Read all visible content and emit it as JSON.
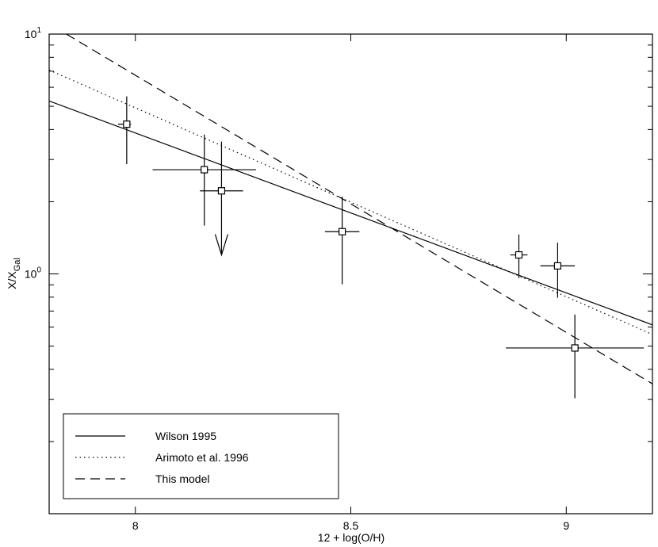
{
  "chart_data": {
    "type": "line",
    "xlabel": "12 + log(O/H)",
    "ylabel": "X/X",
    "ylabel_sub": "Gal",
    "xlim": [
      7.8,
      9.2
    ],
    "xticks": [
      8,
      8.5,
      9
    ],
    "ylim": [
      0.1,
      10
    ],
    "log_y": true,
    "yticks": [
      {
        "value": 1,
        "label": "10",
        "exponent": "0"
      },
      {
        "value": 10,
        "label": "10",
        "exponent": "1"
      }
    ],
    "yminorticks": [
      0.2,
      0.3,
      0.4,
      0.5,
      0.6,
      0.7,
      0.8,
      0.9,
      2,
      3,
      4,
      5,
      6,
      7,
      8,
      9
    ],
    "legend": "lower left",
    "series": [
      {
        "name": "Wilson 1995",
        "color": "#000000",
        "dash": "solid",
        "x": [
          7.8,
          9.2
        ],
        "values": [
          5.26,
          0.613
        ]
      },
      {
        "name": "Arimoto et al. 1996",
        "color": "#000000",
        "dash": "dotted",
        "x": [
          7.8,
          9.2
        ],
        "values": [
          7.08,
          0.559
        ]
      },
      {
        "name": "This model",
        "color": "#000000",
        "dash": "dashed",
        "x": [
          7.84,
          9.2
        ],
        "values": [
          10,
          0.348
        ]
      }
    ],
    "points": {
      "type": "scatter",
      "marker": "square",
      "color": "#000000",
      "x": [
        7.98,
        8.16,
        8.2,
        8.48,
        8.89,
        8.98,
        9.02
      ],
      "values": [
        4.21,
        2.72,
        2.22,
        1.5,
        1.2,
        1.08,
        0.491
      ],
      "ylow": [
        2.87,
        1.59,
        1.2,
        0.905,
        0.96,
        0.795,
        0.303
      ],
      "yhigh": [
        5.5,
        3.81,
        3.56,
        2.1,
        1.46,
        1.35,
        0.677
      ],
      "xlow": [
        7.96,
        8.04,
        8.15,
        8.44,
        8.87,
        8.94,
        8.86
      ],
      "xhigh": [
        7.99,
        8.28,
        8.25,
        8.52,
        8.91,
        9.02,
        9.18
      ],
      "upper_limit": [
        false,
        false,
        true,
        false,
        false,
        false,
        false
      ]
    }
  }
}
